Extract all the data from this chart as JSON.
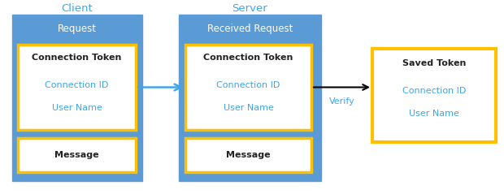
{
  "bg_color": "#ffffff",
  "blue_box_color": "#5B9BD5",
  "orange_border_color": "#FFC000",
  "white_fill": "#ffffff",
  "cyan": "#41A5E8",
  "text_black": "#222222",
  "text_white": "#ffffff",
  "client_label": "Client",
  "server_label": "Server",
  "request_label": "Request",
  "received_request_label": "Received Request",
  "connection_token_label": "Connection Token",
  "connection_id_label": "Connection ID",
  "user_name_label": "User Name",
  "message_label": "Message",
  "saved_token_label": "Saved Token",
  "verify_label": "Verify"
}
